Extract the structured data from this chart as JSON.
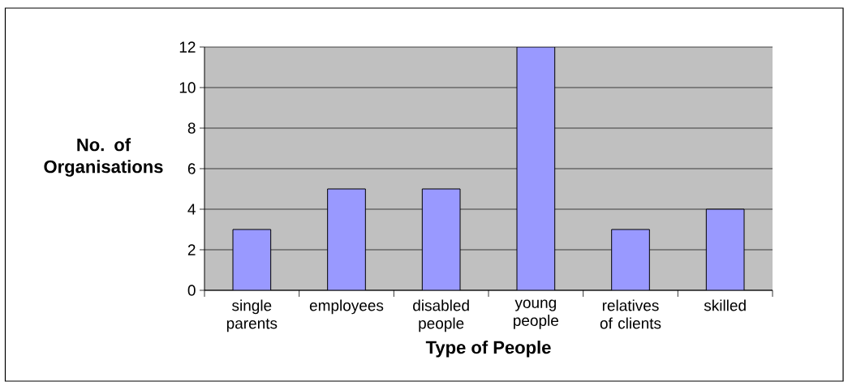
{
  "chart_data": {
    "type": "bar",
    "xlabel": "Type of People",
    "ylabel": "No. of Organisations",
    "categories": [
      "single parents",
      "employees",
      "disabled people",
      "young people",
      "relatives of clients",
      "skilled"
    ],
    "values": [
      3,
      5,
      5,
      12,
      3,
      4
    ],
    "color": "#9999ff",
    "ylim": [
      0,
      12
    ],
    "yticks": [
      0,
      2,
      4,
      6,
      8,
      10,
      12
    ],
    "grid": "y"
  }
}
